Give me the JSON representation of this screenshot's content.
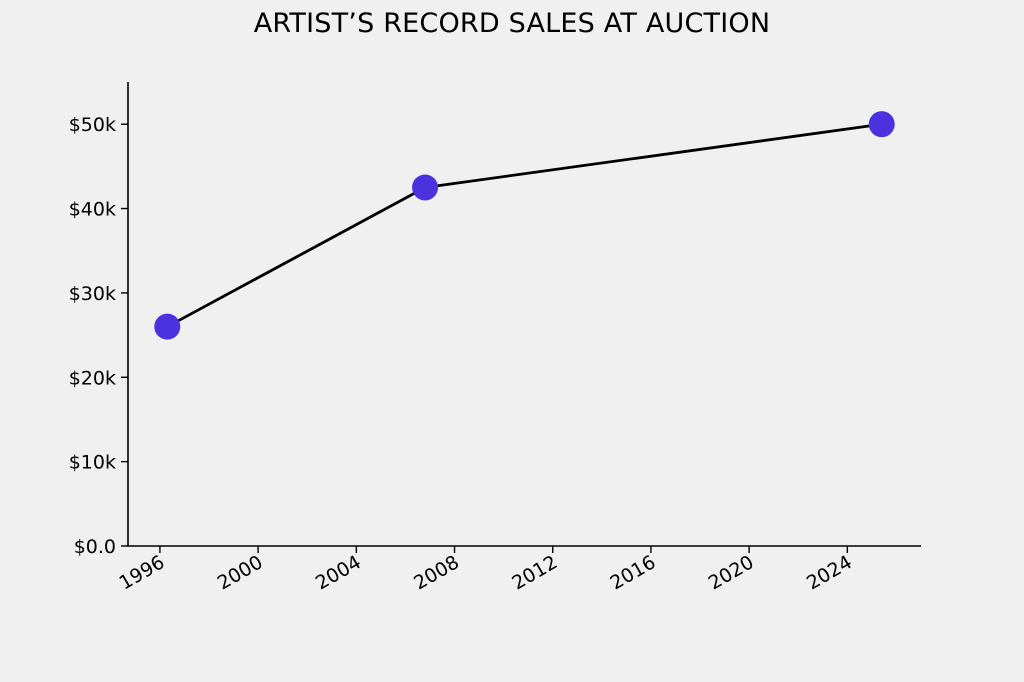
{
  "chart_data": {
    "type": "line",
    "title": "ARTIST’S RECORD SALES AT AUCTION",
    "xlabel": "",
    "ylabel": "",
    "x_tick_labels": [
      "1996",
      "2000",
      "2004",
      "2008",
      "2012",
      "2016",
      "2020",
      "2024"
    ],
    "y_tick_labels": [
      "$0.0",
      "$10k",
      "$20k",
      "$30k",
      "$40k",
      "$50k"
    ],
    "x_ticks": [
      1996,
      2000,
      2004,
      2008,
      2012,
      2016,
      2020,
      2024
    ],
    "y_ticks": [
      0,
      10000,
      20000,
      30000,
      40000,
      50000
    ],
    "xlim": [
      1994.7,
      2027.0
    ],
    "ylim": [
      0,
      55000
    ],
    "series": [
      {
        "x": [
          1996.3,
          2006.8,
          2025.4
        ],
        "y": [
          26000,
          42500,
          50000
        ],
        "line_color": "#000000",
        "marker_color": "#4b32de"
      }
    ],
    "grid": false,
    "legend": "none"
  }
}
